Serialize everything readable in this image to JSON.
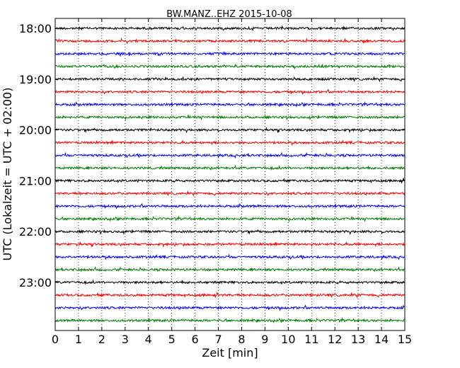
{
  "chart_data": {
    "type": "line",
    "title": "BW.MANZ..EHZ 2015-10-08",
    "xlabel": "Zeit  [min]",
    "ylabel": "UTC (Lokalzeit = UTC + 02:00)",
    "xlim": [
      0,
      15
    ],
    "x_ticks": [
      "0",
      "1",
      "2",
      "3",
      "4",
      "5",
      "6",
      "7",
      "8",
      "9",
      "10",
      "11",
      "12",
      "13",
      "14",
      "15"
    ],
    "y_ticks": [
      "18:00",
      "19:00",
      "20:00",
      "21:00",
      "22:00",
      "23:00"
    ],
    "grid_x": true,
    "line_minutes": 15,
    "series": [
      {
        "start": "18:00",
        "color": "#000000"
      },
      {
        "start": "18:15",
        "color": "#ff0000"
      },
      {
        "start": "18:30",
        "color": "#0000ff"
      },
      {
        "start": "18:45",
        "color": "#008000"
      },
      {
        "start": "19:00",
        "color": "#000000"
      },
      {
        "start": "19:15",
        "color": "#ff0000"
      },
      {
        "start": "19:30",
        "color": "#0000ff"
      },
      {
        "start": "19:45",
        "color": "#008000"
      },
      {
        "start": "20:00",
        "color": "#000000"
      },
      {
        "start": "20:15",
        "color": "#ff0000"
      },
      {
        "start": "20:30",
        "color": "#0000ff"
      },
      {
        "start": "20:45",
        "color": "#008000"
      },
      {
        "start": "21:00",
        "color": "#000000"
      },
      {
        "start": "21:15",
        "color": "#ff0000"
      },
      {
        "start": "21:30",
        "color": "#0000ff"
      },
      {
        "start": "21:45",
        "color": "#008000"
      },
      {
        "start": "22:00",
        "color": "#000000"
      },
      {
        "start": "22:15",
        "color": "#ff0000"
      },
      {
        "start": "22:30",
        "color": "#0000ff"
      },
      {
        "start": "22:45",
        "color": "#008000"
      },
      {
        "start": "23:00",
        "color": "#000000"
      },
      {
        "start": "23:15",
        "color": "#ff0000"
      },
      {
        "start": "23:30",
        "color": "#0000ff"
      },
      {
        "start": "23:45",
        "color": "#008000"
      }
    ]
  }
}
